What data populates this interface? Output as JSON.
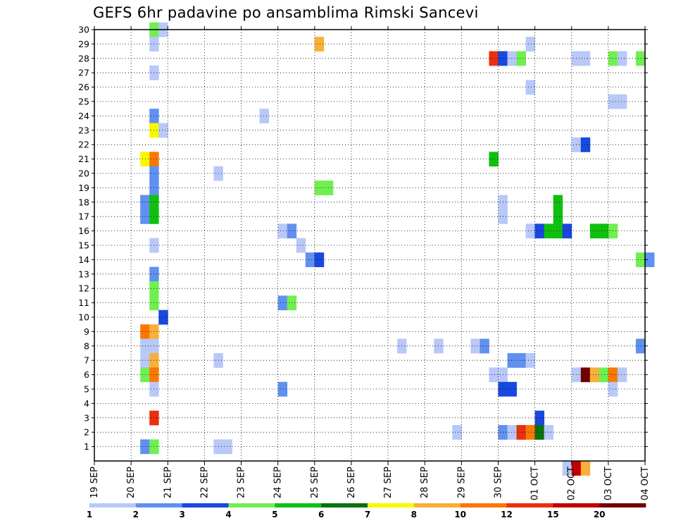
{
  "chart_data": {
    "type": "heatmap",
    "title": "GEFS 6hr padavine po ansamblima Rimski Sancevi",
    "x_tick_labels": [
      "19 SEP",
      "20 SEP",
      "21 SEP",
      "22 SEP",
      "23 SEP",
      "24 SEP",
      "25 SEP",
      "26 SEP",
      "27 SEP",
      "28 SEP",
      "29 SEP",
      "30 SEP",
      "01 OCT",
      "02 OCT",
      "03 OCT",
      "04 OCT"
    ],
    "y_tick_labels": [
      "1",
      "2",
      "3",
      "4",
      "5",
      "6",
      "7",
      "8",
      "9",
      "10",
      "11",
      "12",
      "13",
      "14",
      "15",
      "16",
      "17",
      "18",
      "19",
      "20",
      "21",
      "22",
      "23",
      "24",
      "25",
      "26",
      "27",
      "28",
      "29",
      "30"
    ],
    "x_range_days": [
      0,
      15
    ],
    "y_range_members": [
      0,
      30
    ],
    "grid": "dotted",
    "legend": {
      "position": "bottom",
      "labels": [
        "1",
        "2",
        "3",
        "4",
        "5",
        "6",
        "7",
        "8",
        "10",
        "12",
        "15",
        "20"
      ],
      "colors": [
        "#b8c8f8",
        "#6090f0",
        "#1848e0",
        "#70f050",
        "#10c010",
        "#0a7010",
        "#f8f800",
        "#f8b038",
        "#f87800",
        "#e83010",
        "#c00000",
        "#700000"
      ]
    },
    "units_note": "cells: [member, day offset from 19 SEP 00z, color class index (0=1-2 ... 11=>20)]",
    "cells": [
      [
        30,
        1.5,
        3
      ],
      [
        30,
        1.75,
        0
      ],
      [
        29,
        1.5,
        0
      ],
      [
        29,
        6.0,
        7
      ],
      [
        29,
        11.75,
        0
      ],
      [
        28,
        10.75,
        9
      ],
      [
        28,
        11.0,
        2
      ],
      [
        28,
        11.25,
        0
      ],
      [
        28,
        11.5,
        3
      ],
      [
        28,
        13.0,
        0
      ],
      [
        28,
        13.25,
        0
      ],
      [
        28,
        14.0,
        3
      ],
      [
        28,
        14.25,
        0
      ],
      [
        28,
        14.75,
        3
      ],
      [
        27,
        1.5,
        0
      ],
      [
        26,
        11.75,
        0
      ],
      [
        25,
        14.0,
        0
      ],
      [
        25,
        14.25,
        0
      ],
      [
        24,
        1.5,
        1
      ],
      [
        24,
        4.5,
        0
      ],
      [
        23,
        1.5,
        6
      ],
      [
        23,
        1.75,
        0
      ],
      [
        22,
        13.0,
        0
      ],
      [
        22,
        13.25,
        2
      ],
      [
        21,
        1.25,
        6
      ],
      [
        21,
        1.5,
        8
      ],
      [
        21,
        10.75,
        4
      ],
      [
        20,
        1.5,
        1
      ],
      [
        20,
        3.25,
        0
      ],
      [
        19,
        1.5,
        1
      ],
      [
        19,
        6.0,
        3
      ],
      [
        19,
        6.25,
        3
      ],
      [
        18,
        1.25,
        1
      ],
      [
        18,
        1.5,
        4
      ],
      [
        18,
        11.0,
        0
      ],
      [
        18,
        12.5,
        4
      ],
      [
        17,
        1.25,
        1
      ],
      [
        17,
        1.5,
        4
      ],
      [
        17,
        11.0,
        0
      ],
      [
        17,
        12.5,
        4
      ],
      [
        16,
        5.0,
        0
      ],
      [
        16,
        5.25,
        1
      ],
      [
        16,
        11.75,
        0
      ],
      [
        16,
        12.0,
        2
      ],
      [
        16,
        12.25,
        4
      ],
      [
        16,
        12.5,
        4
      ],
      [
        16,
        12.75,
        2
      ],
      [
        16,
        13.5,
        4
      ],
      [
        16,
        13.75,
        4
      ],
      [
        16,
        14.0,
        3
      ],
      [
        15,
        1.5,
        0
      ],
      [
        15,
        5.5,
        0
      ],
      [
        14,
        5.75,
        1
      ],
      [
        14,
        6.0,
        2
      ],
      [
        14,
        14.75,
        3
      ],
      [
        14,
        15.0,
        1
      ],
      [
        13,
        1.5,
        1
      ],
      [
        12,
        1.5,
        3
      ],
      [
        11,
        1.5,
        3
      ],
      [
        11,
        5.0,
        1
      ],
      [
        11,
        5.25,
        3
      ],
      [
        10,
        1.75,
        2
      ],
      [
        9,
        1.25,
        8
      ],
      [
        9,
        1.5,
        7
      ],
      [
        8,
        1.25,
        0
      ],
      [
        8,
        1.5,
        0
      ],
      [
        8,
        8.25,
        0
      ],
      [
        8,
        9.25,
        0
      ],
      [
        8,
        10.25,
        0
      ],
      [
        8,
        10.5,
        1
      ],
      [
        8,
        14.75,
        1
      ],
      [
        7,
        1.25,
        0
      ],
      [
        7,
        1.5,
        7
      ],
      [
        7,
        3.25,
        0
      ],
      [
        7,
        11.25,
        1
      ],
      [
        7,
        11.5,
        1
      ],
      [
        7,
        11.75,
        0
      ],
      [
        6,
        1.25,
        3
      ],
      [
        6,
        1.5,
        8
      ],
      [
        6,
        10.75,
        0
      ],
      [
        6,
        11.0,
        0
      ],
      [
        6,
        13.0,
        0
      ],
      [
        6,
        13.25,
        11
      ],
      [
        6,
        13.5,
        7
      ],
      [
        6,
        13.75,
        3
      ],
      [
        6,
        14.0,
        8
      ],
      [
        6,
        14.25,
        0
      ],
      [
        5,
        1.5,
        0
      ],
      [
        5,
        5.0,
        1
      ],
      [
        5,
        11.0,
        2
      ],
      [
        5,
        11.25,
        2
      ],
      [
        5,
        14.0,
        0
      ],
      [
        3,
        1.5,
        9
      ],
      [
        3,
        12.0,
        2
      ],
      [
        2,
        9.75,
        0
      ],
      [
        2,
        11.0,
        1
      ],
      [
        2,
        11.25,
        0
      ],
      [
        2,
        11.5,
        9
      ],
      [
        2,
        11.75,
        8
      ],
      [
        2,
        12.0,
        5
      ],
      [
        2,
        12.25,
        0
      ],
      [
        1,
        1.25,
        1
      ],
      [
        1,
        1.5,
        3
      ],
      [
        1,
        3.25,
        0
      ],
      [
        1,
        3.5,
        0
      ],
      [
        0,
        12.75,
        0
      ],
      [
        0,
        13.0,
        10
      ],
      [
        0,
        13.25,
        7
      ]
    ]
  }
}
